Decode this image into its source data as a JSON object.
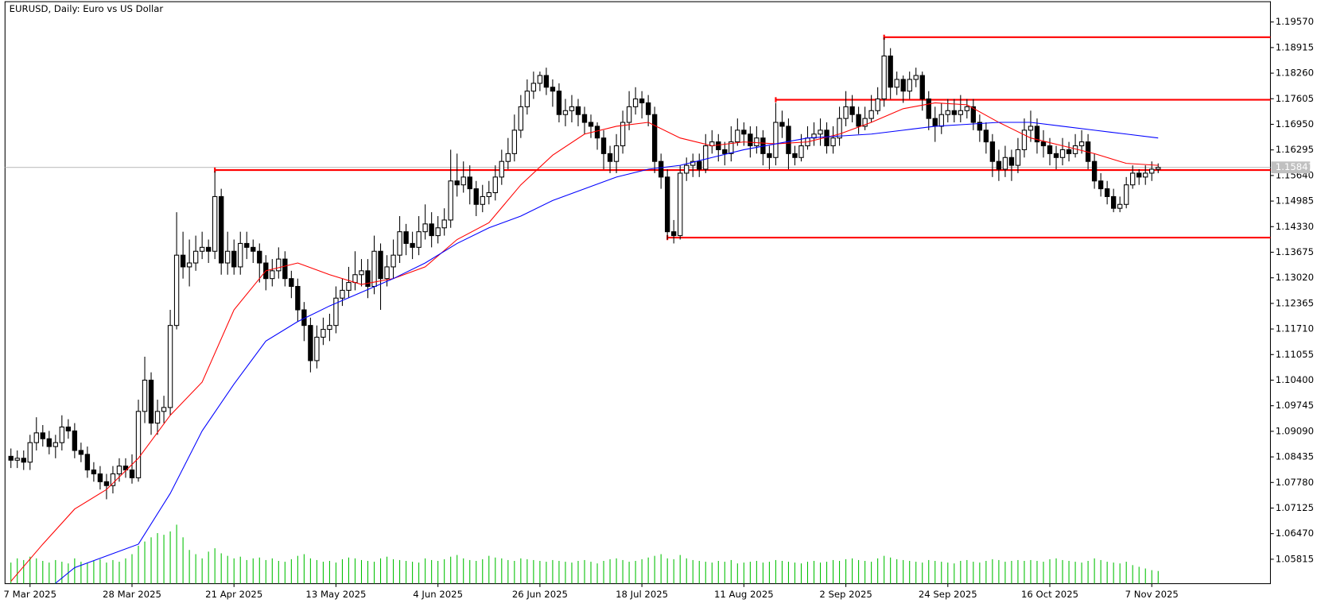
{
  "chart_data": {
    "type": "candlestick",
    "title": "EURUSD, Daily:  Euro vs US Dollar",
    "categories": [
      null,
      null,
      null,
      "7 Mar 2025",
      null,
      null,
      null,
      null,
      null,
      null,
      null,
      null,
      null,
      null,
      null,
      null,
      null,
      null,
      null,
      "28 Mar 2025",
      null,
      null,
      null,
      null,
      null,
      null,
      null,
      null,
      null,
      null,
      null,
      null,
      null,
      null,
      null,
      "21 Apr 2025",
      null,
      null,
      null,
      null,
      null,
      null,
      null,
      null,
      null,
      null,
      null,
      null,
      null,
      null,
      null,
      "13 May 2025",
      null,
      null,
      null,
      null,
      null,
      null,
      null,
      null,
      null,
      null,
      null,
      null,
      null,
      null,
      null,
      "4 Jun 2025",
      null,
      null,
      null,
      null,
      null,
      null,
      null,
      null,
      null,
      null,
      null,
      null,
      null,
      null,
      null,
      "26 Jun 2025",
      null,
      null,
      null,
      null,
      null,
      null,
      null,
      null,
      null,
      null,
      null,
      null,
      null,
      null,
      null,
      "18 Jul 2025",
      null,
      null,
      null,
      null,
      null,
      null,
      null,
      null,
      null,
      null,
      null,
      null,
      null,
      null,
      null,
      "11 Aug 2025",
      null,
      null,
      null,
      null,
      null,
      null,
      null,
      null,
      null,
      null,
      null,
      null,
      null,
      null,
      null,
      "2 Sep 2025",
      null,
      null,
      null,
      null,
      null,
      null,
      null,
      null,
      null,
      null,
      null,
      null,
      null,
      null,
      null,
      "24 Sep 2025",
      null,
      null,
      null,
      null,
      null,
      null,
      null,
      null,
      null,
      null,
      null,
      null,
      null,
      null,
      null,
      "16 Oct 2025",
      null,
      null,
      null,
      null,
      null,
      null,
      null,
      null,
      null,
      null,
      null,
      null,
      null,
      null,
      null,
      "7 Nov 2025",
      null
    ],
    "open": [
      1.0845,
      1.0835,
      1.084,
      1.083,
      1.088,
      1.0905,
      1.089,
      1.087,
      1.088,
      1.092,
      1.091,
      1.086,
      1.085,
      1.081,
      1.08,
      1.078,
      1.077,
      1.08,
      1.082,
      1.081,
      1.079,
      1.096,
      1.104,
      1.093,
      1.096,
      1.097,
      1.118,
      1.136,
      1.133,
      1.134,
      1.137,
      1.138,
      1.137,
      1.151,
      1.134,
      1.137,
      1.133,
      1.139,
      1.138,
      1.137,
      1.134,
      1.13,
      1.132,
      1.135,
      1.13,
      1.128,
      1.122,
      1.118,
      1.109,
      1.115,
      1.117,
      1.118,
      1.125,
      1.127,
      1.129,
      1.131,
      1.132,
      1.128,
      1.137,
      1.13,
      1.133,
      1.136,
      1.142,
      1.139,
      1.138,
      1.142,
      1.144,
      1.141,
      1.143,
      1.145,
      1.155,
      1.154,
      1.156,
      1.153,
      1.149,
      1.151,
      1.152,
      1.156,
      1.16,
      1.162,
      1.168,
      1.174,
      1.178,
      1.18,
      1.182,
      1.179,
      1.178,
      1.172,
      1.173,
      1.174,
      1.172,
      1.17,
      1.169,
      1.166,
      1.162,
      1.16,
      1.164,
      1.17,
      1.174,
      1.176,
      1.175,
      1.172,
      1.16,
      1.156,
      1.142,
      1.141,
      1.157,
      1.159,
      1.16,
      1.158,
      1.164,
      1.165,
      1.163,
      1.162,
      1.165,
      1.168,
      1.167,
      1.164,
      1.166,
      1.162,
      1.161,
      1.17,
      1.169,
      1.162,
      1.161,
      1.164,
      1.166,
      1.167,
      1.168,
      1.164,
      1.166,
      1.171,
      1.174,
      1.172,
      1.169,
      1.171,
      1.173,
      1.176,
      1.187,
      1.179,
      1.181,
      1.178,
      1.181,
      1.182,
      1.176,
      1.171,
      1.169,
      1.172,
      1.173,
      1.172,
      1.173,
      1.174,
      1.17,
      1.168,
      1.165,
      1.16,
      1.158,
      1.161,
      1.159,
      1.163,
      1.168,
      1.169,
      1.165,
      1.164,
      1.162,
      1.161,
      1.163,
      1.162,
      1.164,
      1.165,
      1.16,
      1.155,
      1.153,
      1.151,
      1.148,
      1.149,
      1.154,
      1.157,
      1.156,
      1.157,
      1.158
    ],
    "high": [
      1.0865,
      1.086,
      1.086,
      1.09,
      1.0945,
      1.0925,
      1.091,
      1.09,
      1.095,
      1.094,
      1.093,
      1.088,
      1.087,
      1.083,
      1.082,
      1.08,
      1.082,
      1.084,
      1.084,
      1.085,
      1.099,
      1.11,
      1.106,
      1.099,
      1.1,
      1.122,
      1.147,
      1.142,
      1.14,
      1.141,
      1.142,
      1.14,
      1.1575,
      1.153,
      1.142,
      1.14,
      1.142,
      1.142,
      1.14,
      1.139,
      1.136,
      1.135,
      1.138,
      1.137,
      1.132,
      1.13,
      1.124,
      1.12,
      1.118,
      1.12,
      1.121,
      1.128,
      1.13,
      1.133,
      1.137,
      1.135,
      1.135,
      1.141,
      1.139,
      1.136,
      1.14,
      1.146,
      1.144,
      1.142,
      1.146,
      1.149,
      1.147,
      1.146,
      1.148,
      1.163,
      1.162,
      1.16,
      1.159,
      1.155,
      1.154,
      1.155,
      1.159,
      1.163,
      1.166,
      1.172,
      1.177,
      1.181,
      1.183,
      1.183,
      1.184,
      1.181,
      1.18,
      1.176,
      1.177,
      1.176,
      1.174,
      1.172,
      1.17,
      1.168,
      1.164,
      1.167,
      1.173,
      1.178,
      1.179,
      1.178,
      1.177,
      1.174,
      1.162,
      1.158,
      1.145,
      1.159,
      1.161,
      1.162,
      1.162,
      1.167,
      1.168,
      1.167,
      1.165,
      1.169,
      1.171,
      1.17,
      1.169,
      1.169,
      1.168,
      1.164,
      1.175,
      1.173,
      1.171,
      1.164,
      1.167,
      1.169,
      1.17,
      1.171,
      1.17,
      1.169,
      1.174,
      1.178,
      1.177,
      1.174,
      1.174,
      1.177,
      1.179,
      1.1918,
      1.189,
      1.183,
      1.182,
      1.183,
      1.184,
      1.183,
      1.178,
      1.174,
      1.175,
      1.176,
      1.176,
      1.177,
      1.176,
      1.176,
      1.172,
      1.17,
      1.167,
      1.163,
      1.164,
      1.163,
      1.166,
      1.171,
      1.173,
      1.171,
      1.168,
      1.166,
      1.164,
      1.166,
      1.165,
      1.167,
      1.168,
      1.167,
      1.162,
      1.157,
      1.155,
      1.153,
      1.151,
      1.156,
      1.159,
      1.158,
      1.159,
      1.16,
      1.1595
    ],
    "low": [
      1.0815,
      1.0815,
      1.081,
      1.081,
      1.086,
      1.087,
      1.085,
      1.084,
      1.086,
      1.089,
      1.084,
      1.083,
      1.079,
      1.078,
      1.076,
      1.0735,
      1.075,
      1.078,
      1.079,
      1.0775,
      1.078,
      1.093,
      1.09,
      1.09,
      1.093,
      1.095,
      1.117,
      1.13,
      1.128,
      1.132,
      1.135,
      1.134,
      1.135,
      1.131,
      1.131,
      1.131,
      1.131,
      1.135,
      1.134,
      1.129,
      1.127,
      1.128,
      1.13,
      1.128,
      1.125,
      1.119,
      1.114,
      1.106,
      1.107,
      1.113,
      1.114,
      1.116,
      1.123,
      1.125,
      1.127,
      1.128,
      1.125,
      1.126,
      1.122,
      1.128,
      1.13,
      1.134,
      1.136,
      1.135,
      1.136,
      1.14,
      1.138,
      1.139,
      1.141,
      1.143,
      1.151,
      1.152,
      1.149,
      1.146,
      1.147,
      1.149,
      1.15,
      1.154,
      1.158,
      1.16,
      1.166,
      1.172,
      1.176,
      1.178,
      1.177,
      1.174,
      1.17,
      1.169,
      1.17,
      1.169,
      1.167,
      1.166,
      1.163,
      1.158,
      1.157,
      1.157,
      1.162,
      1.168,
      1.172,
      1.171,
      1.169,
      1.157,
      1.153,
      1.14,
      1.139,
      1.14,
      1.155,
      1.156,
      1.156,
      1.157,
      1.162,
      1.16,
      1.159,
      1.16,
      1.164,
      1.164,
      1.161,
      1.162,
      1.159,
      1.158,
      1.159,
      1.166,
      1.158,
      1.159,
      1.16,
      1.163,
      1.164,
      1.164,
      1.162,
      1.162,
      1.164,
      1.169,
      1.17,
      1.167,
      1.168,
      1.17,
      1.172,
      1.174,
      1.176,
      1.177,
      1.175,
      1.176,
      1.179,
      1.173,
      1.168,
      1.165,
      1.167,
      1.17,
      1.17,
      1.17,
      1.171,
      1.168,
      1.165,
      1.162,
      1.156,
      1.155,
      1.156,
      1.155,
      1.157,
      1.161,
      1.165,
      1.162,
      1.161,
      1.159,
      1.158,
      1.159,
      1.16,
      1.161,
      1.162,
      1.158,
      1.153,
      1.151,
      1.149,
      1.147,
      1.147,
      1.148,
      1.153,
      1.154,
      1.154,
      1.155,
      1.157
    ],
    "close": [
      1.0835,
      1.084,
      1.083,
      1.088,
      1.0905,
      1.089,
      1.087,
      1.088,
      1.092,
      1.091,
      1.086,
      1.085,
      1.081,
      1.08,
      1.078,
      1.077,
      1.08,
      1.082,
      1.081,
      1.079,
      1.096,
      1.104,
      1.093,
      1.096,
      1.097,
      1.118,
      1.136,
      1.133,
      1.134,
      1.137,
      1.138,
      1.137,
      1.151,
      1.134,
      1.137,
      1.133,
      1.139,
      1.138,
      1.137,
      1.134,
      1.13,
      1.132,
      1.135,
      1.13,
      1.128,
      1.122,
      1.118,
      1.109,
      1.115,
      1.117,
      1.118,
      1.125,
      1.127,
      1.129,
      1.131,
      1.132,
      1.128,
      1.137,
      1.13,
      1.133,
      1.136,
      1.142,
      1.139,
      1.138,
      1.142,
      1.144,
      1.141,
      1.143,
      1.145,
      1.155,
      1.154,
      1.156,
      1.153,
      1.149,
      1.151,
      1.152,
      1.156,
      1.16,
      1.162,
      1.168,
      1.174,
      1.178,
      1.18,
      1.182,
      1.179,
      1.178,
      1.172,
      1.173,
      1.174,
      1.172,
      1.17,
      1.169,
      1.166,
      1.162,
      1.16,
      1.164,
      1.17,
      1.174,
      1.176,
      1.175,
      1.172,
      1.16,
      1.156,
      1.142,
      1.141,
      1.157,
      1.159,
      1.16,
      1.158,
      1.164,
      1.165,
      1.163,
      1.162,
      1.165,
      1.168,
      1.167,
      1.164,
      1.166,
      1.162,
      1.161,
      1.17,
      1.169,
      1.162,
      1.161,
      1.164,
      1.166,
      1.167,
      1.168,
      1.164,
      1.166,
      1.171,
      1.174,
      1.172,
      1.169,
      1.171,
      1.173,
      1.176,
      1.187,
      1.179,
      1.181,
      1.178,
      1.181,
      1.182,
      1.176,
      1.171,
      1.169,
      1.172,
      1.173,
      1.172,
      1.173,
      1.174,
      1.17,
      1.168,
      1.165,
      1.16,
      1.158,
      1.161,
      1.159,
      1.163,
      1.168,
      1.169,
      1.165,
      1.164,
      1.162,
      1.161,
      1.163,
      1.162,
      1.164,
      1.165,
      1.16,
      1.155,
      1.153,
      1.151,
      1.148,
      1.149,
      1.154,
      1.157,
      1.156,
      1.157,
      1.158,
      1.15847
    ],
    "volume": [
      25,
      30,
      28,
      32,
      30,
      27,
      25,
      28,
      26,
      24,
      30,
      26,
      24,
      27,
      29,
      25,
      28,
      26,
      30,
      35,
      45,
      50,
      55,
      60,
      58,
      62,
      70,
      55,
      40,
      35,
      30,
      38,
      42,
      36,
      33,
      30,
      32,
      28,
      30,
      31,
      28,
      30,
      27,
      26,
      29,
      33,
      35,
      30,
      28,
      26,
      27,
      25,
      29,
      31,
      30,
      28,
      27,
      26,
      30,
      32,
      29,
      28,
      27,
      26,
      25,
      30,
      28,
      27,
      29,
      32,
      34,
      30,
      28,
      27,
      29,
      33,
      31,
      30,
      28,
      27,
      30,
      29,
      28,
      27,
      26,
      28,
      27,
      26,
      25,
      27,
      28,
      26,
      24,
      27,
      29,
      30,
      28,
      26,
      27,
      29,
      31,
      33,
      35,
      30,
      29,
      34,
      30,
      28,
      27,
      26,
      25,
      27,
      26,
      28,
      24,
      25,
      26,
      27,
      25,
      26,
      28,
      27,
      26,
      25,
      24,
      26,
      27,
      25,
      26,
      28,
      27,
      29,
      30,
      28,
      27,
      26,
      30,
      33,
      31,
      29,
      28,
      27,
      26,
      25,
      28,
      27,
      26,
      25,
      24,
      27,
      28,
      26,
      25,
      27,
      29,
      28,
      26,
      27,
      28,
      27,
      28,
      27,
      26,
      29,
      30,
      28,
      27,
      26,
      25,
      27,
      30,
      28,
      26,
      25,
      24,
      26,
      22,
      20,
      18,
      16,
      15
    ],
    "volume_color": "#00c000",
    "lines": [
      {
        "color": "#ff0000",
        "x": [
          0,
          5,
          10,
          15,
          20,
          25,
          30,
          35,
          40,
          45,
          50,
          55,
          60,
          65,
          70,
          75,
          80,
          85,
          90,
          95,
          100,
          105,
          110,
          115,
          120,
          125,
          130,
          135,
          140,
          145,
          150,
          155,
          160,
          165,
          170,
          175,
          180
        ],
        "values": [
          1.0525,
          1.062,
          1.071,
          1.076,
          1.084,
          1.095,
          1.1035,
          1.122,
          1.132,
          1.134,
          1.131,
          1.1285,
          1.13,
          1.133,
          1.14,
          1.1443,
          1.154,
          1.1616,
          1.167,
          1.169,
          1.17,
          1.166,
          1.164,
          1.165,
          1.1645,
          1.165,
          1.167,
          1.17,
          1.1735,
          1.175,
          1.1745,
          1.17,
          1.166,
          1.164,
          1.162,
          1.1595,
          1.159
        ]
      },
      {
        "color": "#0000ff",
        "x": [
          7,
          10,
          15,
          20,
          25,
          30,
          35,
          40,
          45,
          50,
          55,
          60,
          65,
          70,
          75,
          80,
          85,
          90,
          95,
          100,
          105,
          110,
          115,
          120,
          125,
          130,
          135,
          140,
          145,
          150,
          155,
          160,
          165,
          170,
          175,
          180
        ],
        "values": [
          1.052,
          1.056,
          1.059,
          1.062,
          1.075,
          1.091,
          1.103,
          1.114,
          1.119,
          1.123,
          1.1265,
          1.13,
          1.134,
          1.139,
          1.143,
          1.146,
          1.15,
          1.153,
          1.156,
          1.158,
          1.159,
          1.161,
          1.163,
          1.1645,
          1.166,
          1.1665,
          1.167,
          1.168,
          1.169,
          1.1695,
          1.17,
          1.17,
          1.169,
          1.168,
          1.167,
          1.166
        ]
      }
    ],
    "levels": [
      {
        "value": 1.1918,
        "from": 137
      },
      {
        "value": 1.1758,
        "from": 120
      },
      {
        "value": 1.1578,
        "from": 32
      },
      {
        "value": 1.1405,
        "from": 103
      }
    ],
    "level_color": "#ff0000",
    "current_price": 1.15847,
    "ylim": [
      1.0519,
      1.2009
    ],
    "yticks": [
      {
        "value": 1.1957,
        "label": "1.19570"
      },
      1.18915,
      {
        "value": 1.1826,
        "label": "1.18260"
      },
      1.17605,
      {
        "value": 1.1695,
        "label": "1.16950"
      },
      1.16295,
      {
        "value": 1.1564,
        "label": "1.15640"
      },
      1.14985,
      {
        "value": 1.1433,
        "label": "1.14330"
      },
      1.13675,
      {
        "value": 1.1302,
        "label": "1.13020"
      },
      1.12365,
      {
        "value": 1.1171,
        "label": "1.11710"
      },
      1.11055,
      {
        "value": 1.104,
        "label": "1.10400"
      },
      1.09745,
      {
        "value": 1.0909,
        "label": "1.09090"
      },
      1.08435,
      {
        "value": 1.0778,
        "label": "1.07780"
      },
      1.07125,
      {
        "value": 1.0647,
        "label": "1.06470"
      },
      1.05815
    ]
  }
}
